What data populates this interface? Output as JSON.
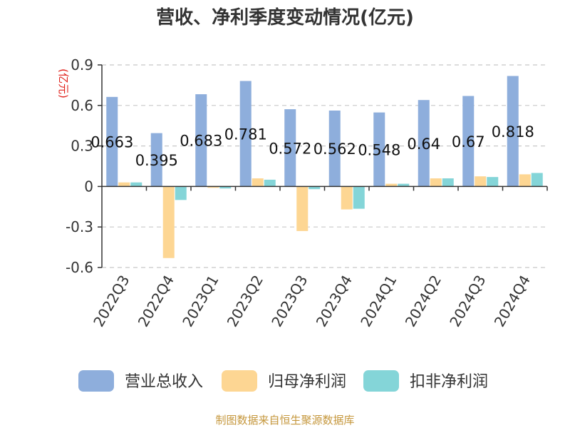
{
  "colors": {
    "revenue": "#8eaedc",
    "net_profit": "#fdd693",
    "deducted_profit": "#84d5d8",
    "axis": "#333333",
    "grid": "#c8c8c8",
    "unit": "#e0201a",
    "source": "#c5973c"
  },
  "chart_data": {
    "type": "bar",
    "title": "营收、净利季度变动情况(亿元)",
    "unit_label": "(亿元)",
    "categories": [
      "2022Q3",
      "2022Q4",
      "2023Q1",
      "2023Q2",
      "2023Q3",
      "2023Q4",
      "2024Q1",
      "2024Q2",
      "2024Q3",
      "2024Q4"
    ],
    "series": [
      {
        "name": "营业总收入",
        "values": [
          0.663,
          0.395,
          0.683,
          0.781,
          0.572,
          0.562,
          0.548,
          0.64,
          0.67,
          0.818
        ]
      },
      {
        "name": "归母净利润",
        "values": [
          0.03,
          -0.53,
          -0.01,
          0.06,
          -0.33,
          -0.17,
          0.02,
          0.06,
          0.075,
          0.09
        ]
      },
      {
        "name": "扣非净利润",
        "values": [
          0.03,
          -0.1,
          -0.015,
          0.05,
          -0.02,
          -0.165,
          0.02,
          0.06,
          0.07,
          0.1
        ]
      }
    ],
    "data_labels": [
      "0.663",
      "0.395",
      "0.683",
      "0.781",
      "0.572",
      "0.562",
      "0.548",
      "0.64",
      "0.67",
      "0.818"
    ],
    "ylim": [
      -0.6,
      0.9
    ],
    "yticks": [
      "0.9",
      "0.6",
      "0.3",
      "0",
      "-0.3",
      "-0.6"
    ],
    "grid": true,
    "legend_position": "bottom"
  },
  "footer": {
    "source": "制图数据来自恒生聚源数据库"
  }
}
